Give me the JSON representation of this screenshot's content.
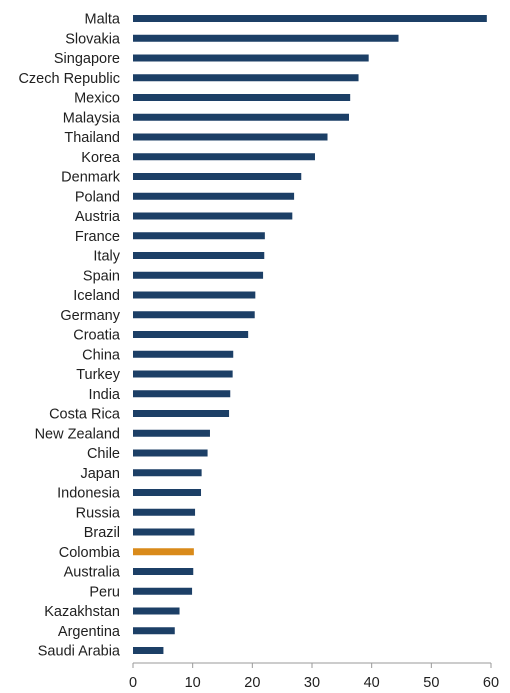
{
  "colors": {
    "bar": "#1c3f66",
    "highlight": "#d98a1a",
    "axis": "#9a9a9a",
    "text": "#1f1f1f"
  },
  "chart_data": {
    "type": "bar",
    "orientation": "horizontal",
    "title": "",
    "xlabel": "",
    "ylabel": "",
    "xlim": [
      0,
      60
    ],
    "xticks": [
      0,
      10,
      20,
      30,
      40,
      50,
      60
    ],
    "grid": false,
    "highlight_category": "Colombia",
    "categories": [
      "Malta",
      "Slovakia",
      "Singapore",
      "Czech Republic",
      "Mexico",
      "Malaysia",
      "Thailand",
      "Korea",
      "Denmark",
      "Poland",
      "Austria",
      "France",
      "Italy",
      "Spain",
      "Iceland",
      "Germany",
      "Croatia",
      "China",
      "Turkey",
      "India",
      "Costa Rica",
      "New Zealand",
      "Chile",
      "Japan",
      "Indonesia",
      "Russia",
      "Brazil",
      "Colombia",
      "Australia",
      "Peru",
      "Kazakhstan",
      "Argentina",
      "Saudi Arabia"
    ],
    "values": [
      59.3,
      44.5,
      39.5,
      37.8,
      36.4,
      36.2,
      32.6,
      30.5,
      28.2,
      27.0,
      26.7,
      22.1,
      22.0,
      21.8,
      20.5,
      20.4,
      19.3,
      16.8,
      16.7,
      16.3,
      16.1,
      12.9,
      12.5,
      11.5,
      11.4,
      10.4,
      10.3,
      10.2,
      10.1,
      9.9,
      7.8,
      7.0,
      5.1
    ]
  }
}
